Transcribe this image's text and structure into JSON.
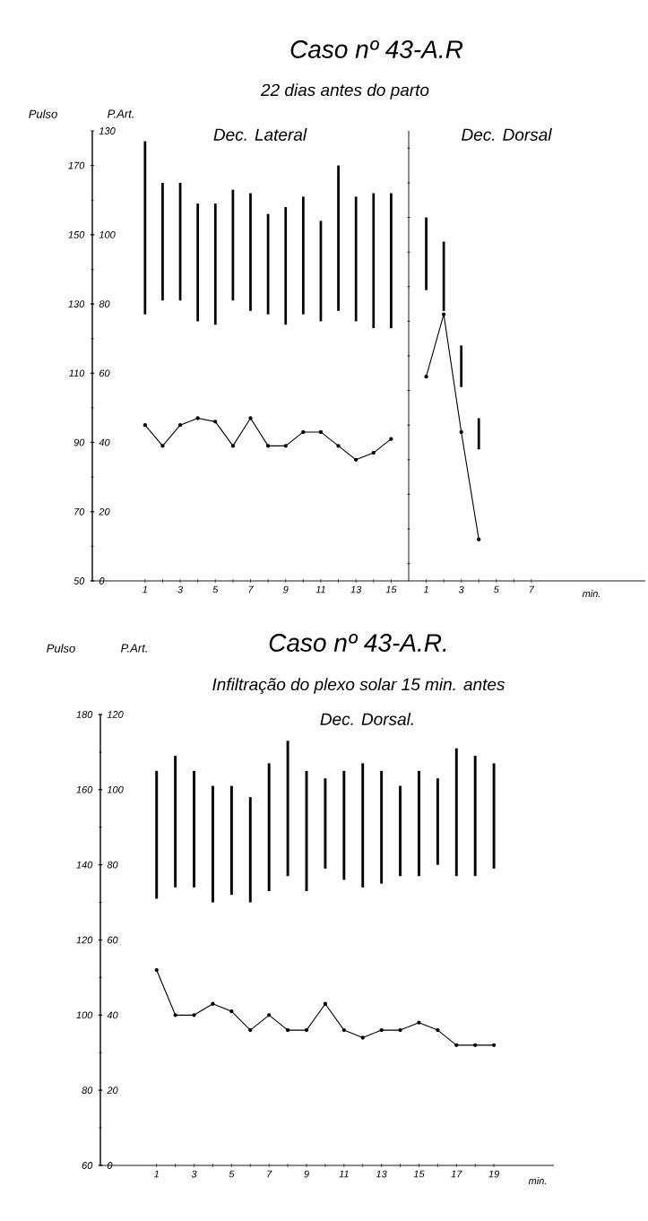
{
  "chart_data": [
    {
      "type": "bar",
      "title": "Caso nº 43-A.R",
      "subtitle": "22 dias antes do parto",
      "annotations": [
        "Dec. Lateral"
      ],
      "ylabel": "Pulso",
      "y2label": "P.Art.",
      "categories": [
        "1",
        null,
        "3",
        null,
        "5",
        null,
        "7",
        null,
        "9",
        null,
        "11",
        null,
        "13",
        null,
        "15"
      ],
      "ylim": [
        50,
        180
      ],
      "yticks": [
        50,
        70,
        90,
        110,
        130,
        150,
        170
      ],
      "y2lim": [
        0,
        130
      ],
      "y2ticks": [
        0,
        20,
        40,
        60,
        80,
        100,
        130
      ],
      "tick_labels": "xy",
      "series": [
        {
          "axis": "y2",
          "color": "#000000",
          "base": [
            77,
            81,
            81,
            75,
            74,
            81,
            78,
            77,
            74,
            77,
            75,
            78,
            75,
            73,
            73
          ],
          "values": [
            50,
            34,
            34,
            34,
            35,
            32,
            34,
            29,
            34,
            34,
            29,
            42,
            36,
            39,
            39
          ]
        },
        {
          "type": "line",
          "axis": "y",
          "color": "#000000",
          "marker": "circle",
          "values": [
            95,
            89,
            95,
            97,
            96,
            89,
            97,
            89,
            89,
            93,
            93,
            89,
            85,
            87,
            91
          ]
        }
      ]
    },
    {
      "type": "bar",
      "annotations": [
        "Dec. Dorsal"
      ],
      "xlabel": "min.",
      "categories": [
        "1",
        null,
        "3",
        null,
        "5",
        null,
        "7"
      ],
      "ylim": [
        50,
        180
      ],
      "y2lim": [
        0,
        130
      ],
      "tick_labels": "x",
      "series": [
        {
          "axis": "y2",
          "color": "#000000",
          "base": [
            84,
            78,
            56,
            38,
            null,
            null,
            null
          ],
          "values": [
            21,
            20,
            12,
            9,
            null,
            null,
            null
          ]
        },
        {
          "type": "line",
          "axis": "y",
          "color": "#000000",
          "marker": "circle",
          "values": [
            109,
            127,
            93,
            62,
            null,
            null,
            null
          ]
        }
      ]
    },
    {
      "type": "bar",
      "title": "Caso nº 43-A.R.",
      "subtitle": "Infiltração do plexo solar 15 min. antes",
      "annotations": [
        "Dec. Dorsal."
      ],
      "ylabel": "Pulso",
      "y2label": "P.Art.",
      "xlabel": "min.",
      "categories": [
        "1",
        null,
        "3",
        null,
        "5",
        null,
        "7",
        null,
        "9",
        null,
        "11",
        null,
        "13",
        null,
        "15",
        null,
        "17",
        null,
        "19"
      ],
      "ylim": [
        60,
        180
      ],
      "yticks": [
        60,
        80,
        100,
        120,
        140,
        160,
        180
      ],
      "y2lim": [
        0,
        120
      ],
      "y2ticks": [
        0,
        20,
        40,
        60,
        80,
        100,
        120
      ],
      "tick_labels": "xy",
      "series": [
        {
          "axis": "y2",
          "color": "#000000",
          "base": [
            71,
            74,
            74,
            70,
            72,
            70,
            73,
            77,
            73,
            79,
            76,
            74,
            75,
            77,
            77,
            80,
            77,
            77,
            79
          ],
          "values": [
            34,
            35,
            31,
            31,
            29,
            28,
            34,
            36,
            32,
            24,
            29,
            33,
            30,
            24,
            28,
            23,
            34,
            32,
            28
          ]
        },
        {
          "type": "line",
          "axis": "y",
          "color": "#000000",
          "marker": "circle",
          "values": [
            112,
            100,
            100,
            103,
            101,
            96,
            100,
            96,
            96,
            103,
            96,
            94,
            96,
            96,
            98,
            96,
            92,
            92,
            92
          ]
        }
      ]
    }
  ]
}
